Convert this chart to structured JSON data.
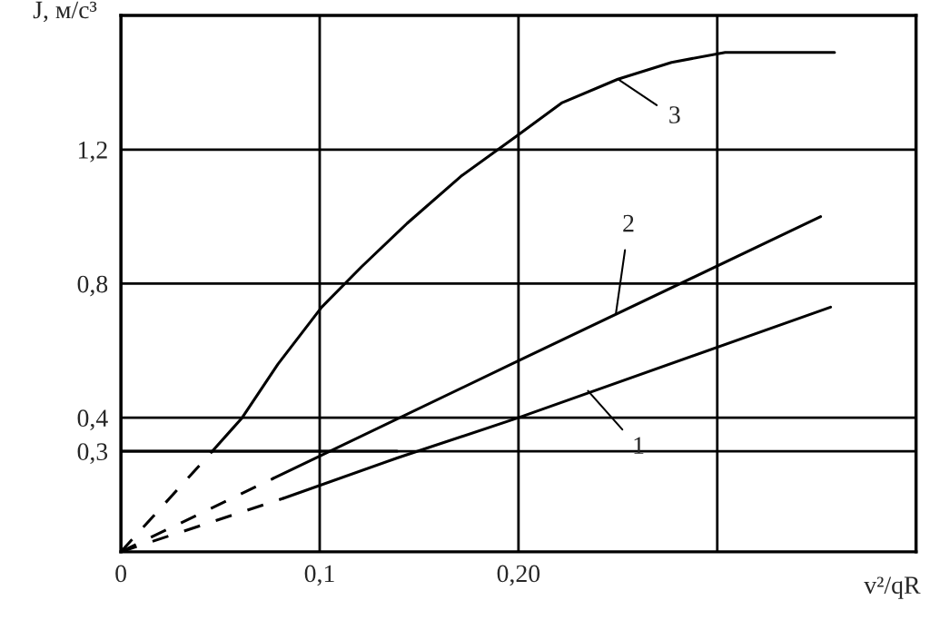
{
  "chart_data": {
    "type": "line",
    "xlabel": "v²/qR",
    "ylabel": "J, м/с³",
    "xlim": [
      0,
      0.4
    ],
    "ylim": [
      0,
      1.6
    ],
    "xticks": [
      {
        "value": 0,
        "label": "0"
      },
      {
        "value": 0.1,
        "label": "0,1"
      },
      {
        "value": 0.2,
        "label": "0,20"
      },
      {
        "value": 0.3,
        "label": null
      }
    ],
    "yticks": [
      {
        "value": 0.3,
        "label": "0,3"
      },
      {
        "value": 0.4,
        "label": "0,4"
      },
      {
        "value": 0.8,
        "label": "0,8"
      },
      {
        "value": 1.2,
        "label": "1,2"
      }
    ],
    "grid": true,
    "marker": "none",
    "series": [
      {
        "color": "#000000",
        "line_style": "dashed",
        "x": [
          0,
          0.082
        ],
        "values": [
          0,
          0.16
        ]
      },
      {
        "color": "#000000",
        "line_style": "solid",
        "x": [
          0.082,
          0.139,
          0.2,
          0.357
        ],
        "values": [
          0.16,
          0.28,
          0.4,
          0.73
        ]
      },
      {
        "color": "#000000",
        "line_style": "dashed",
        "x": [
          0,
          0.077
        ],
        "values": [
          0,
          0.22
        ]
      },
      {
        "color": "#000000",
        "line_style": "solid",
        "x": [
          0.077,
          0.2,
          0.352
        ],
        "values": [
          0.22,
          0.57,
          1.0
        ]
      },
      {
        "color": "#000000",
        "line_style": "dashed",
        "x": [
          0,
          0.046
        ],
        "values": [
          0,
          0.3
        ]
      },
      {
        "color": "#000000",
        "line_style": "solid",
        "x": [
          0.046,
          0.061,
          0.079,
          0.101,
          0.121,
          0.144,
          0.171,
          0.199,
          0.222,
          0.25,
          0.277,
          0.304,
          0.332,
          0.359
        ],
        "values": [
          0.3,
          0.4,
          0.56,
          0.73,
          0.85,
          0.98,
          1.12,
          1.24,
          1.34,
          1.41,
          1.46,
          1.49,
          1.49,
          1.49
        ]
      },
      {
        "color": "#000000",
        "line_style": "solid",
        "x": [
          0,
          0.139
        ],
        "values": [
          0.3,
          0.3
        ]
      }
    ],
    "annotations": [
      {
        "text": "1",
        "x": 0.235,
        "y": 0.48
      },
      {
        "text": "2",
        "x": 0.249,
        "y": 0.71
      },
      {
        "text": "3",
        "x": 0.25,
        "y": 1.41
      }
    ]
  }
}
